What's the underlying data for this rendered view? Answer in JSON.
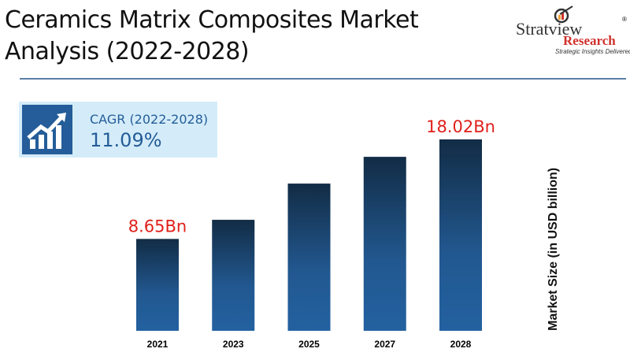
{
  "title": "Ceramics Matrix Composites Market Analysis (2022-2028)",
  "logo": {
    "name": "Stratview",
    "sub": "Research",
    "tagline": "Strategic Insights Delivered",
    "mark": "®"
  },
  "cagr": {
    "label": "CAGR (2022-2028)",
    "value": "11.09%",
    "icon": "growth-chart-icon"
  },
  "chart_data": {
    "type": "bar",
    "categories": [
      "2021",
      "2023",
      "2025",
      "2027",
      "2028"
    ],
    "values": [
      8.65,
      10.45,
      13.86,
      16.38,
      18.02
    ],
    "data_labels": [
      "8.65Bn",
      "",
      "",
      "",
      "18.02Bn"
    ],
    "ylabel": "Market Size (in USD billion)",
    "xlabel": "",
    "ylim": [
      0,
      18.02
    ],
    "colors": {
      "bar_top": "#122c45",
      "bar_bottom": "#2361a0",
      "label": "#e0201b"
    }
  }
}
